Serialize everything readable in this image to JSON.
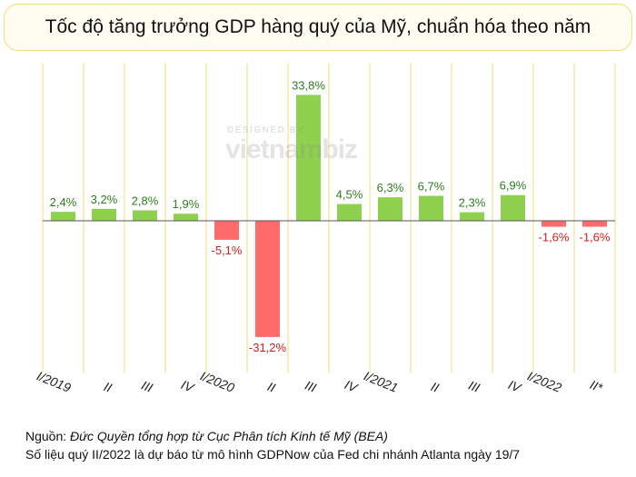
{
  "title": "Tốc độ tăng trưởng GDP hàng quý của Mỹ, chuẩn hóa theo năm",
  "watermark": {
    "top": "DESIGNED BY",
    "brand": "vietnambiz"
  },
  "footer": {
    "source_label": "Nguồn:",
    "source_text": "Đức Quyền tổng hợp từ Cục Phân tích Kinh tế Mỹ (BEA)",
    "note": "Số liệu quý II/2022 là dự báo từ mô hình GDPNow của Fed chi nhánh Atlanta ngày 19/7"
  },
  "colors": {
    "positive": "#8fd14f",
    "negative": "#ff6b6b",
    "positive_label": "#2e7d1e",
    "negative_label": "#d61f1f",
    "grid": "#f2dc7a",
    "axis": "#555555"
  },
  "chart_data": {
    "type": "bar",
    "categories": [
      "I/2019",
      "II",
      "III",
      "IV",
      "I/2020",
      "II",
      "III",
      "IV",
      "I/2021",
      "II",
      "III",
      "IV",
      "I/2022",
      "II*"
    ],
    "values": [
      2.4,
      3.2,
      2.8,
      1.9,
      -5.1,
      -31.2,
      33.8,
      4.5,
      6.3,
      6.7,
      2.3,
      6.9,
      -1.6,
      -1.6
    ],
    "labels": [
      "2,4%",
      "3,2%",
      "2,8%",
      "1,9%",
      "-5,1%",
      "-31,2%",
      "33,8%",
      "4,5%",
      "6,3%",
      "6,7%",
      "2,3%",
      "6,9%",
      "-1,6%",
      "-1,6%"
    ],
    "title": "Tốc độ tăng trưởng GDP hàng quý của Mỹ, chuẩn hóa theo năm",
    "xlabel": "",
    "ylabel": "",
    "ylim": [
      -40,
      40
    ],
    "grid": "vertical",
    "legend": "none"
  }
}
